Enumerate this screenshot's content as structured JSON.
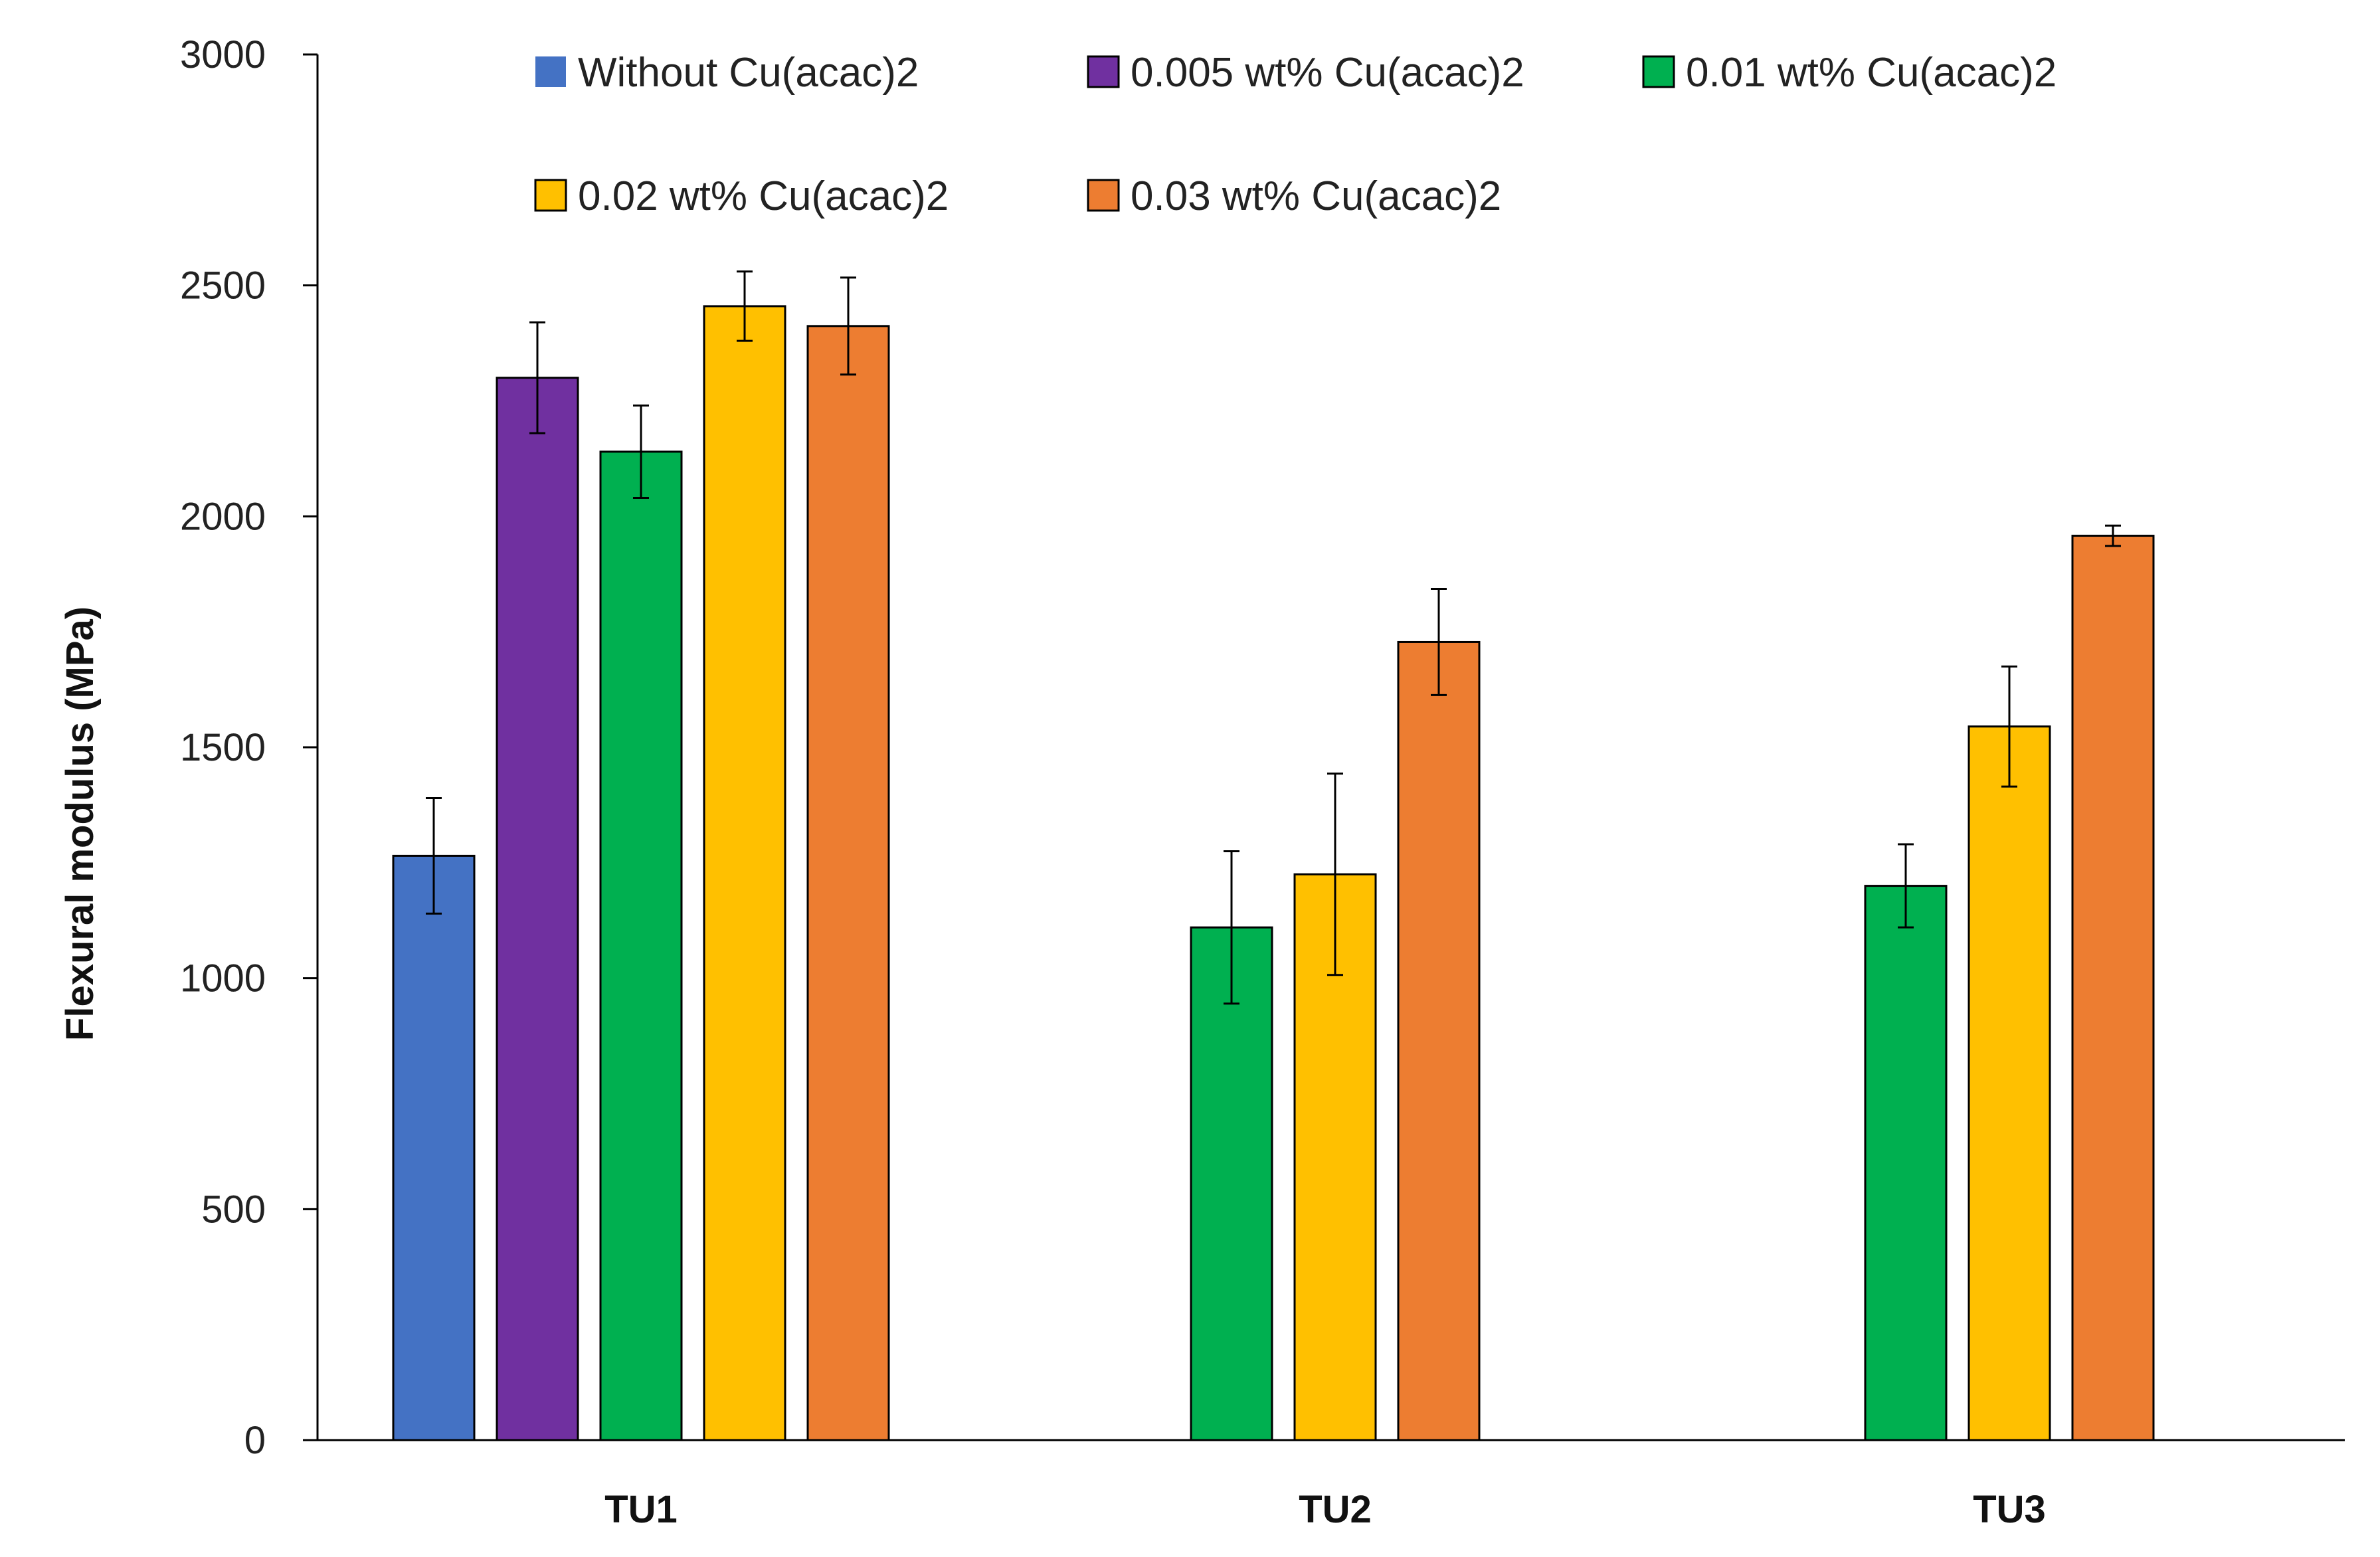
{
  "chart_data": {
    "type": "bar",
    "title": "",
    "xlabel": "",
    "ylabel": "Flexural modulus (MPa)",
    "ylim": [
      0,
      3000
    ],
    "yticks": [
      0,
      500,
      1000,
      1500,
      2000,
      2500,
      3000
    ],
    "grid": false,
    "legend_position": "top",
    "categories": [
      "TU1",
      "TU2",
      "TU3"
    ],
    "series": [
      {
        "name": "Without Cu(acac)2",
        "color": "#4472C4",
        "values": [
          1265,
          null,
          null
        ],
        "errors": [
          125,
          null,
          null
        ]
      },
      {
        "name": "0.005 wt% Cu(acac)2",
        "color": "#7030A0",
        "values": [
          2300,
          null,
          null
        ],
        "errors": [
          120,
          null,
          null
        ]
      },
      {
        "name": "0.01 wt% Cu(acac)2",
        "color": "#00B050",
        "values": [
          2140,
          1110,
          1200
        ],
        "errors": [
          100,
          165,
          90
        ]
      },
      {
        "name": "0.02 wt% Cu(acac)2",
        "color": "#FFC000",
        "values": [
          2455,
          1225,
          1545
        ],
        "errors": [
          75,
          218,
          130
        ]
      },
      {
        "name": "0.03 wt% Cu(acac)2",
        "color": "#ED7D31",
        "values": [
          2412,
          1728,
          1958
        ],
        "errors": [
          105,
          115,
          22
        ]
      }
    ]
  }
}
